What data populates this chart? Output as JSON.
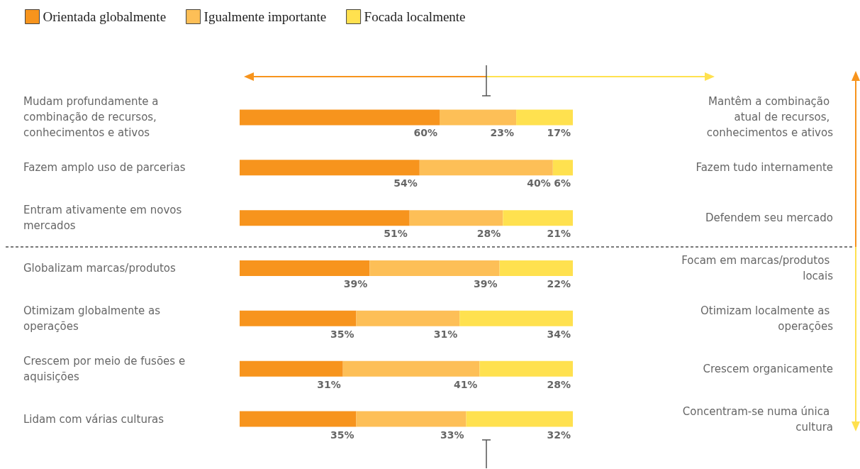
{
  "chart_data": {
    "type": "bar",
    "orientation": "horizontal",
    "stacked": true,
    "legend": "top left",
    "tick_labels": "y",
    "data_labels": true,
    "categories": [
      "Mudam profundamente a combinação de recursos, conhecimentos e ativos",
      "Fazem amplo uso de parcerias",
      "Entram ativamente em novos mercados",
      "Globalizam marcas/produtos",
      "Otimizam globalmente as operações",
      "Crescem por meio de fusões e aquisições",
      "Lidam com várias culturas"
    ],
    "y2_categories": [
      "Mantêm a combinação atual de recursos, conhecimentos e ativos",
      "Fazem tudo internamente",
      "Defendem seu mercado",
      "Focam em marcas/produtos locais",
      "Otimizam localmente as operações",
      "Crescem organicamente",
      "Concentram-se numa única cultura"
    ],
    "series": [
      {
        "name": "Orientada globalmente",
        "color": "#f7941d",
        "values": [
          60,
          54,
          51,
          39,
          35,
          31,
          35
        ],
        "value_labels": [
          "60%",
          "54%",
          "51%",
          "39%",
          "35%",
          "31%",
          "35%"
        ]
      },
      {
        "name": "Igualmente importante",
        "color": "#fdbf57",
        "values": [
          23,
          40,
          28,
          39,
          31,
          41,
          33
        ],
        "value_labels": [
          "23%",
          "40%",
          "28%",
          "39%",
          "31%",
          "41%",
          "33%"
        ]
      },
      {
        "name": "Focada localmente",
        "color": "#ffe14f",
        "values": [
          17,
          6,
          21,
          22,
          34,
          28,
          32
        ],
        "value_labels": [
          "17%",
          "6%",
          "21%",
          "22%",
          "34%",
          "28%",
          "32%"
        ]
      }
    ]
  }
}
